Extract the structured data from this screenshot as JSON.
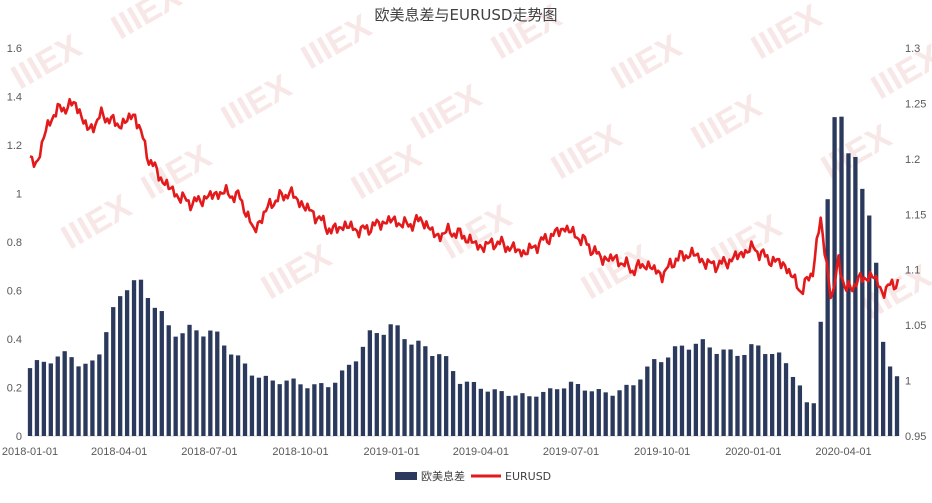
{
  "chart_data": {
    "type": "bar+line",
    "title": "欧美息差与EURUSD走势图",
    "x_tick_labels": [
      "2018-01-01",
      "2018-04-01",
      "2018-07-01",
      "2018-10-01",
      "2019-01-01",
      "2019-04-01",
      "2019-07-01",
      "2019-10-01",
      "2020-01-01",
      "2020-04-01"
    ],
    "x_range": [
      "2018-01-01",
      "2020-05-26"
    ],
    "left_axis": {
      "ylim": [
        0,
        1.6
      ],
      "ticks": [
        "0",
        "0.2",
        "0.4",
        "0.6",
        "0.8",
        "1",
        "1.2",
        "1.4",
        "1.6"
      ]
    },
    "right_axis": {
      "ylim": [
        0.95,
        1.3
      ],
      "ticks": [
        "0.95",
        "1",
        "1.05",
        "1.1",
        "1.15",
        "1.2",
        "1.25",
        "1.3"
      ]
    },
    "legend": {
      "position": "bottom"
    },
    "series": [
      {
        "name": "欧美息差",
        "kind": "bar",
        "axis": "left",
        "color": "#2b3a5c",
        "points": [
          [
            "2018-01-01",
            0.28
          ],
          [
            "2018-01-15",
            0.3
          ],
          [
            "2018-02-01",
            0.31
          ],
          [
            "2018-02-10",
            0.35
          ],
          [
            "2018-02-20",
            0.3
          ],
          [
            "2018-03-01",
            0.29
          ],
          [
            "2018-03-10",
            0.35
          ],
          [
            "2018-03-20",
            0.45
          ],
          [
            "2018-04-01",
            0.55
          ],
          [
            "2018-04-05",
            0.62
          ],
          [
            "2018-04-20",
            0.6
          ],
          [
            "2018-05-05",
            0.57
          ],
          [
            "2018-05-20",
            0.46
          ],
          [
            "2018-06-10",
            0.44
          ],
          [
            "2018-06-30",
            0.42
          ],
          [
            "2018-07-20",
            0.36
          ],
          [
            "2018-08-10",
            0.28
          ],
          [
            "2018-09-01",
            0.23
          ],
          [
            "2018-09-20",
            0.22
          ],
          [
            "2018-10-10",
            0.2
          ],
          [
            "2018-11-01",
            0.22
          ],
          [
            "2018-11-20",
            0.3
          ],
          [
            "2018-12-10",
            0.4
          ],
          [
            "2019-01-01",
            0.44
          ],
          [
            "2019-01-15",
            0.42
          ],
          [
            "2019-02-01",
            0.38
          ],
          [
            "2019-02-20",
            0.34
          ],
          [
            "2019-03-10",
            0.22
          ],
          [
            "2019-04-01",
            0.2
          ],
          [
            "2019-05-01",
            0.18
          ],
          [
            "2019-05-20",
            0.16
          ],
          [
            "2019-06-10",
            0.18
          ],
          [
            "2019-07-01",
            0.22
          ],
          [
            "2019-07-20",
            0.2
          ],
          [
            "2019-08-10",
            0.17
          ],
          [
            "2019-09-01",
            0.2
          ],
          [
            "2019-09-20",
            0.3
          ],
          [
            "2019-10-10",
            0.36
          ],
          [
            "2019-11-01",
            0.38
          ],
          [
            "2019-11-20",
            0.35
          ],
          [
            "2019-12-10",
            0.34
          ],
          [
            "2020-01-01",
            0.38
          ],
          [
            "2020-01-15",
            0.36
          ],
          [
            "2020-02-01",
            0.3
          ],
          [
            "2020-02-15",
            0.22
          ],
          [
            "2020-02-25",
            0.12
          ],
          [
            "2020-03-05",
            0.15
          ],
          [
            "2020-03-10",
            0.6
          ],
          [
            "2020-03-18",
            1.1
          ],
          [
            "2020-03-25",
            1.4
          ],
          [
            "2020-03-30",
            1.43
          ],
          [
            "2020-04-08",
            1.15
          ],
          [
            "2020-04-20",
            0.98
          ],
          [
            "2020-05-01",
            0.9
          ],
          [
            "2020-05-08",
            0.4
          ],
          [
            "2020-05-15",
            0.3
          ],
          [
            "2020-05-26",
            0.26
          ]
        ]
      },
      {
        "name": "EURUSD",
        "kind": "line",
        "axis": "right",
        "color": "#e31a1c",
        "points": [
          [
            "2018-01-01",
            1.2
          ],
          [
            "2018-01-08",
            1.195
          ],
          [
            "2018-01-15",
            1.22
          ],
          [
            "2018-01-24",
            1.24
          ],
          [
            "2018-02-01",
            1.245
          ],
          [
            "2018-02-16",
            1.25
          ],
          [
            "2018-03-01",
            1.225
          ],
          [
            "2018-03-15",
            1.24
          ],
          [
            "2018-04-01",
            1.23
          ],
          [
            "2018-04-17",
            1.24
          ],
          [
            "2018-05-01",
            1.2
          ],
          [
            "2018-05-15",
            1.18
          ],
          [
            "2018-06-01",
            1.165
          ],
          [
            "2018-06-15",
            1.16
          ],
          [
            "2018-06-30",
            1.166
          ],
          [
            "2018-07-15",
            1.17
          ],
          [
            "2018-08-01",
            1.165
          ],
          [
            "2018-08-15",
            1.135
          ],
          [
            "2018-09-01",
            1.16
          ],
          [
            "2018-09-20",
            1.17
          ],
          [
            "2018-10-01",
            1.16
          ],
          [
            "2018-10-15",
            1.15
          ],
          [
            "2018-11-01",
            1.135
          ],
          [
            "2018-11-15",
            1.14
          ],
          [
            "2018-12-01",
            1.135
          ],
          [
            "2018-12-15",
            1.14
          ],
          [
            "2019-01-01",
            1.145
          ],
          [
            "2019-01-15",
            1.14
          ],
          [
            "2019-02-01",
            1.145
          ],
          [
            "2019-02-15",
            1.13
          ],
          [
            "2019-03-01",
            1.135
          ],
          [
            "2019-03-15",
            1.13
          ],
          [
            "2019-04-01",
            1.12
          ],
          [
            "2019-04-15",
            1.125
          ],
          [
            "2019-05-01",
            1.12
          ],
          [
            "2019-05-15",
            1.115
          ],
          [
            "2019-06-01",
            1.125
          ],
          [
            "2019-06-25",
            1.138
          ],
          [
            "2019-07-15",
            1.125
          ],
          [
            "2019-08-01",
            1.11
          ],
          [
            "2019-08-15",
            1.11
          ],
          [
            "2019-09-01",
            1.1
          ],
          [
            "2019-09-15",
            1.105
          ],
          [
            "2019-10-01",
            1.095
          ],
          [
            "2019-10-15",
            1.11
          ],
          [
            "2019-11-01",
            1.115
          ],
          [
            "2019-11-15",
            1.105
          ],
          [
            "2019-12-01",
            1.105
          ],
          [
            "2019-12-15",
            1.112
          ],
          [
            "2020-01-01",
            1.12
          ],
          [
            "2020-01-15",
            1.11
          ],
          [
            "2020-02-01",
            1.105
          ],
          [
            "2020-02-19",
            1.08
          ],
          [
            "2020-03-01",
            1.1
          ],
          [
            "2020-03-09",
            1.145
          ],
          [
            "2020-03-15",
            1.105
          ],
          [
            "2020-03-20",
            1.07
          ],
          [
            "2020-03-27",
            1.11
          ],
          [
            "2020-04-03",
            1.08
          ],
          [
            "2020-04-15",
            1.09
          ],
          [
            "2020-05-01",
            1.095
          ],
          [
            "2020-05-10",
            1.08
          ],
          [
            "2020-05-26",
            1.09
          ]
        ]
      }
    ]
  },
  "watermark": {
    "text": "IIIEX",
    "color": "#f2d4d4"
  }
}
